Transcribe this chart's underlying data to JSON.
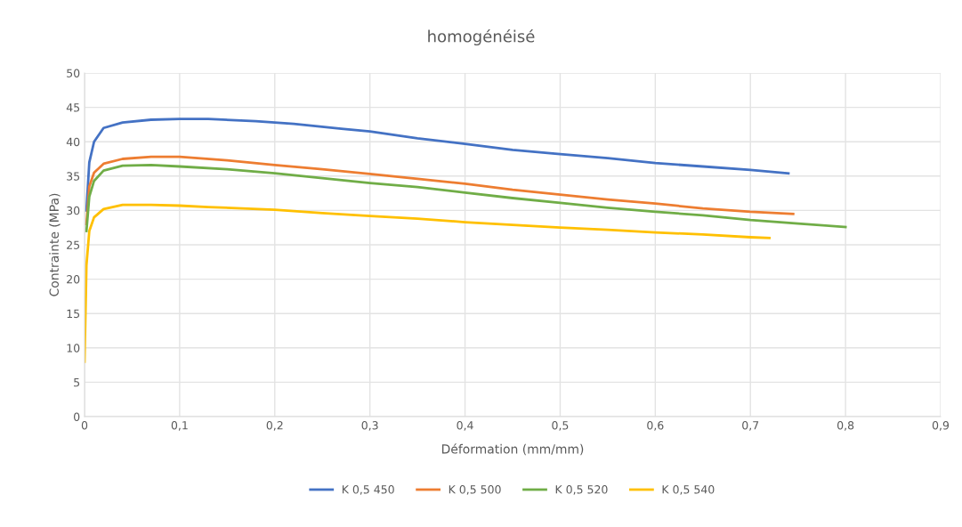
{
  "chart_data": {
    "type": "line",
    "title": "homogénéisé",
    "xlabel": "Déformation (mm/mm)",
    "ylabel": "Contrainte (MPa)",
    "xlim": [
      0,
      0.9
    ],
    "xticks": [
      0,
      {
        "value": 0.1,
        "label": "0,1"
      },
      {
        "value": 0.2,
        "label": "0,2"
      },
      {
        "value": 0.3,
        "label": "0,3"
      },
      {
        "value": 0.4,
        "label": "0,4"
      },
      {
        "value": 0.5,
        "label": "0,5"
      },
      {
        "value": 0.6,
        "label": "0,6"
      },
      {
        "value": 0.7,
        "label": "0,7"
      },
      {
        "value": 0.8,
        "label": "0,8"
      },
      {
        "value": 0.9,
        "label": "0,9"
      }
    ],
    "ylim": [
      0,
      50
    ],
    "yticks": [
      0,
      5,
      10,
      15,
      20,
      25,
      30,
      35,
      40,
      45,
      50
    ],
    "grid": true,
    "legend": "bottom",
    "marker": "none",
    "line_style": "solid",
    "series": [
      {
        "name": "K 0,5 450",
        "color": "#4472c4",
        "x": [
          0.002,
          0.005,
          0.01,
          0.02,
          0.04,
          0.07,
          0.1,
          0.13,
          0.18,
          0.22,
          0.27,
          0.3,
          0.35,
          0.4,
          0.45,
          0.5,
          0.55,
          0.6,
          0.65,
          0.7,
          0.74
        ],
        "values": [
          30,
          37,
          40,
          42,
          42.8,
          43.2,
          43.3,
          43.3,
          43.0,
          42.6,
          41.9,
          41.5,
          40.5,
          39.7,
          38.8,
          38.2,
          37.6,
          36.9,
          36.4,
          35.9,
          35.4
        ]
      },
      {
        "name": "K 0,5 500",
        "color": "#ed7d31",
        "x": [
          0.002,
          0.005,
          0.01,
          0.02,
          0.04,
          0.07,
          0.1,
          0.15,
          0.2,
          0.25,
          0.3,
          0.35,
          0.4,
          0.45,
          0.5,
          0.55,
          0.6,
          0.65,
          0.7,
          0.745
        ],
        "values": [
          28,
          33.5,
          35.5,
          36.8,
          37.5,
          37.8,
          37.8,
          37.3,
          36.6,
          36.0,
          35.3,
          34.6,
          33.9,
          33.0,
          32.3,
          31.6,
          31.0,
          30.3,
          29.8,
          29.5
        ]
      },
      {
        "name": "K 0,5 520",
        "color": "#70ad47",
        "x": [
          0.002,
          0.005,
          0.01,
          0.02,
          0.04,
          0.07,
          0.1,
          0.15,
          0.2,
          0.25,
          0.3,
          0.35,
          0.4,
          0.45,
          0.5,
          0.55,
          0.6,
          0.65,
          0.7,
          0.75,
          0.8
        ],
        "values": [
          27,
          32,
          34.3,
          35.8,
          36.5,
          36.6,
          36.4,
          36.0,
          35.4,
          34.7,
          34.0,
          33.4,
          32.6,
          31.8,
          31.1,
          30.4,
          29.8,
          29.3,
          28.6,
          28.1,
          27.6
        ]
      },
      {
        "name": "K 0,5 540",
        "color": "#ffc000",
        "x": [
          0,
          0.002,
          0.005,
          0.01,
          0.02,
          0.04,
          0.07,
          0.1,
          0.13,
          0.2,
          0.25,
          0.3,
          0.35,
          0.4,
          0.45,
          0.5,
          0.55,
          0.6,
          0.65,
          0.7,
          0.72
        ],
        "values": [
          8,
          22,
          27,
          29,
          30.2,
          30.8,
          30.8,
          30.7,
          30.5,
          30.1,
          29.6,
          29.2,
          28.8,
          28.3,
          27.9,
          27.5,
          27.2,
          26.8,
          26.5,
          26.1,
          26.0
        ]
      }
    ]
  }
}
